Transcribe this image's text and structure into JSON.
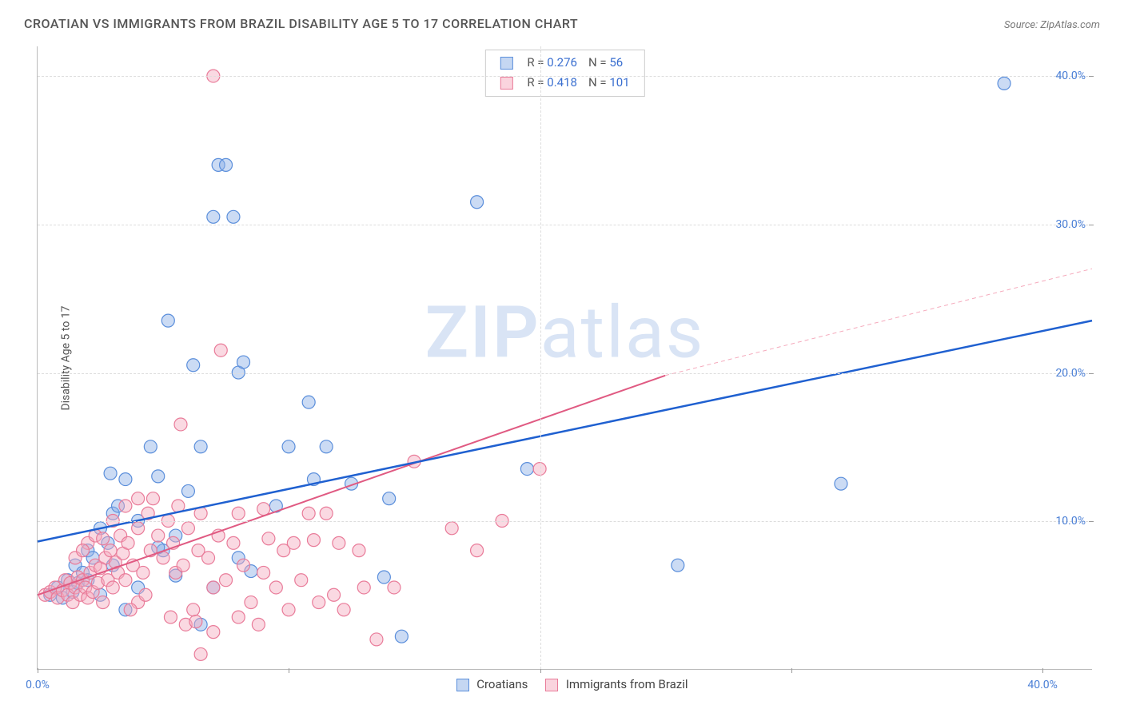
{
  "header": {
    "title": "CROATIAN VS IMMIGRANTS FROM BRAZIL DISABILITY AGE 5 TO 17 CORRELATION CHART",
    "source": "Source: ZipAtlas.com"
  },
  "chart": {
    "type": "scatter",
    "y_axis_title": "Disability Age 5 to 17",
    "watermark": "ZIPatlas",
    "background_color": "#ffffff",
    "grid_color": "#dddddd",
    "axis_line_color": "#bbbbbb",
    "tick_label_color": "#4a7fd6",
    "xlim": [
      0,
      42
    ],
    "ylim": [
      0,
      42
    ],
    "x_ticks": [
      0,
      20,
      40
    ],
    "x_tick_labels": [
      "0.0%",
      "",
      "40.0%"
    ],
    "x_minor_ticks": [
      10,
      30
    ],
    "y_ticks": [
      10,
      20,
      30,
      40
    ],
    "y_tick_labels": [
      "10.0%",
      "20.0%",
      "30.0%",
      "40.0%"
    ],
    "label_fontsize": 14,
    "marker_radius": 8,
    "series": [
      {
        "name": "Croatians",
        "color_fill": "rgba(140,175,230,0.45)",
        "color_stroke": "#5a8edb",
        "R": "0.276",
        "N": "56",
        "trend_color": "#1f60d0",
        "trend_width": 2.5,
        "trend": {
          "x1": 0,
          "y1": 8.6,
          "x2": 42,
          "y2": 23.5
        },
        "points": [
          [
            0.5,
            5.0
          ],
          [
            0.8,
            5.5
          ],
          [
            1.0,
            4.8
          ],
          [
            1.2,
            6.0
          ],
          [
            1.4,
            5.2
          ],
          [
            1.5,
            7.0
          ],
          [
            1.6,
            5.8
          ],
          [
            1.8,
            6.5
          ],
          [
            2.0,
            8.0
          ],
          [
            2.2,
            7.5
          ],
          [
            2.5,
            9.5
          ],
          [
            2.8,
            8.5
          ],
          [
            2.9,
            13.2
          ],
          [
            3.0,
            10.5
          ],
          [
            3.2,
            11.0
          ],
          [
            3.5,
            12.8
          ],
          [
            4.0,
            10.0
          ],
          [
            4.5,
            15.0
          ],
          [
            4.8,
            13.0
          ],
          [
            5.0,
            8.0
          ],
          [
            5.2,
            23.5
          ],
          [
            5.5,
            6.3
          ],
          [
            6.0,
            12.0
          ],
          [
            6.2,
            20.5
          ],
          [
            6.5,
            15.0
          ],
          [
            7.0,
            30.5
          ],
          [
            7.2,
            34.0
          ],
          [
            7.5,
            34.0
          ],
          [
            7.8,
            30.5
          ],
          [
            8.0,
            20.0
          ],
          [
            8.2,
            20.7
          ],
          [
            8.5,
            6.6
          ],
          [
            9.5,
            11.0
          ],
          [
            10.0,
            15.0
          ],
          [
            10.8,
            18.0
          ],
          [
            11.0,
            12.8
          ],
          [
            11.5,
            15.0
          ],
          [
            12.5,
            12.5
          ],
          [
            13.8,
            6.2
          ],
          [
            14.0,
            11.5
          ],
          [
            14.5,
            2.2
          ],
          [
            17.5,
            31.5
          ],
          [
            19.5,
            13.5
          ],
          [
            25.5,
            7.0
          ],
          [
            32.0,
            12.5
          ],
          [
            38.5,
            39.5
          ],
          [
            3.5,
            4.0
          ],
          [
            4.0,
            5.5
          ],
          [
            4.8,
            8.2
          ],
          [
            5.5,
            9.0
          ],
          [
            6.5,
            3.0
          ],
          [
            7.0,
            5.5
          ],
          [
            8.0,
            7.5
          ],
          [
            2.0,
            6.0
          ],
          [
            2.5,
            5.0
          ],
          [
            3.0,
            7.0
          ]
        ]
      },
      {
        "name": "Immigrants from Brazil",
        "color_fill": "rgba(245,170,190,0.45)",
        "color_stroke": "#e97b99",
        "R": "0.418",
        "N": "101",
        "trend_color": "#e05a82",
        "trend_width": 2,
        "trend": {
          "x1": 0,
          "y1": 5.0,
          "x2": 25,
          "y2": 19.8
        },
        "trend_dashed": {
          "x1": 25,
          "y1": 19.8,
          "x2": 42,
          "y2": 27.0
        },
        "points": [
          [
            0.3,
            5.0
          ],
          [
            0.5,
            5.2
          ],
          [
            0.7,
            5.5
          ],
          [
            0.8,
            4.8
          ],
          [
            1.0,
            5.3
          ],
          [
            1.1,
            6.0
          ],
          [
            1.2,
            5.0
          ],
          [
            1.3,
            5.8
          ],
          [
            1.4,
            4.5
          ],
          [
            1.5,
            5.5
          ],
          [
            1.6,
            6.2
          ],
          [
            1.7,
            5.0
          ],
          [
            1.8,
            6.0
          ],
          [
            1.9,
            5.5
          ],
          [
            2.0,
            4.8
          ],
          [
            2.1,
            6.5
          ],
          [
            2.2,
            5.2
          ],
          [
            2.3,
            7.0
          ],
          [
            2.4,
            5.8
          ],
          [
            2.5,
            6.8
          ],
          [
            2.6,
            4.5
          ],
          [
            2.7,
            7.5
          ],
          [
            2.8,
            6.0
          ],
          [
            2.9,
            8.0
          ],
          [
            3.0,
            5.5
          ],
          [
            3.1,
            7.2
          ],
          [
            3.2,
            6.5
          ],
          [
            3.3,
            9.0
          ],
          [
            3.4,
            7.8
          ],
          [
            3.5,
            6.0
          ],
          [
            3.6,
            8.5
          ],
          [
            3.8,
            7.0
          ],
          [
            4.0,
            9.5
          ],
          [
            4.2,
            6.5
          ],
          [
            4.4,
            10.5
          ],
          [
            4.5,
            8.0
          ],
          [
            4.6,
            11.5
          ],
          [
            4.8,
            9.0
          ],
          [
            5.0,
            7.5
          ],
          [
            5.2,
            10.0
          ],
          [
            5.4,
            8.5
          ],
          [
            5.5,
            6.5
          ],
          [
            5.6,
            11.0
          ],
          [
            5.8,
            7.0
          ],
          [
            5.7,
            16.5
          ],
          [
            6.0,
            9.5
          ],
          [
            6.2,
            4.0
          ],
          [
            6.4,
            8.0
          ],
          [
            6.5,
            10.5
          ],
          [
            6.8,
            7.5
          ],
          [
            7.0,
            5.5
          ],
          [
            7.0,
            40.0
          ],
          [
            7.2,
            9.0
          ],
          [
            7.3,
            21.5
          ],
          [
            7.5,
            6.0
          ],
          [
            7.8,
            8.5
          ],
          [
            8.0,
            3.5
          ],
          [
            8.2,
            7.0
          ],
          [
            8.5,
            4.5
          ],
          [
            8.8,
            3.0
          ],
          [
            9.0,
            6.5
          ],
          [
            9.2,
            8.8
          ],
          [
            9.5,
            5.5
          ],
          [
            9.8,
            8.0
          ],
          [
            10.0,
            4.0
          ],
          [
            10.2,
            8.5
          ],
          [
            10.5,
            6.0
          ],
          [
            10.8,
            10.5
          ],
          [
            11.0,
            8.7
          ],
          [
            11.2,
            4.5
          ],
          [
            11.5,
            10.5
          ],
          [
            11.8,
            5.0
          ],
          [
            12.0,
            8.5
          ],
          [
            12.2,
            4.0
          ],
          [
            12.8,
            8.0
          ],
          [
            13.0,
            5.5
          ],
          [
            13.5,
            2.0
          ],
          [
            14.2,
            5.5
          ],
          [
            15.0,
            14.0
          ],
          [
            16.5,
            9.5
          ],
          [
            17.5,
            8.0
          ],
          [
            18.5,
            10.0
          ],
          [
            20.0,
            13.5
          ],
          [
            5.3,
            3.5
          ],
          [
            5.9,
            3.0
          ],
          [
            6.3,
            3.2
          ],
          [
            4.0,
            4.5
          ],
          [
            4.3,
            5.0
          ],
          [
            3.7,
            4.0
          ],
          [
            2.0,
            8.5
          ],
          [
            2.3,
            9.0
          ],
          [
            2.6,
            8.8
          ],
          [
            1.5,
            7.5
          ],
          [
            1.8,
            8.0
          ],
          [
            6.5,
            1.0
          ],
          [
            7.0,
            2.5
          ],
          [
            8.0,
            10.5
          ],
          [
            9.0,
            10.8
          ],
          [
            3.0,
            10.0
          ],
          [
            3.5,
            11.0
          ],
          [
            4.0,
            11.5
          ]
        ]
      }
    ],
    "legend_bottom": {
      "item1": "Croatians",
      "item2": "Immigrants from Brazil"
    }
  }
}
